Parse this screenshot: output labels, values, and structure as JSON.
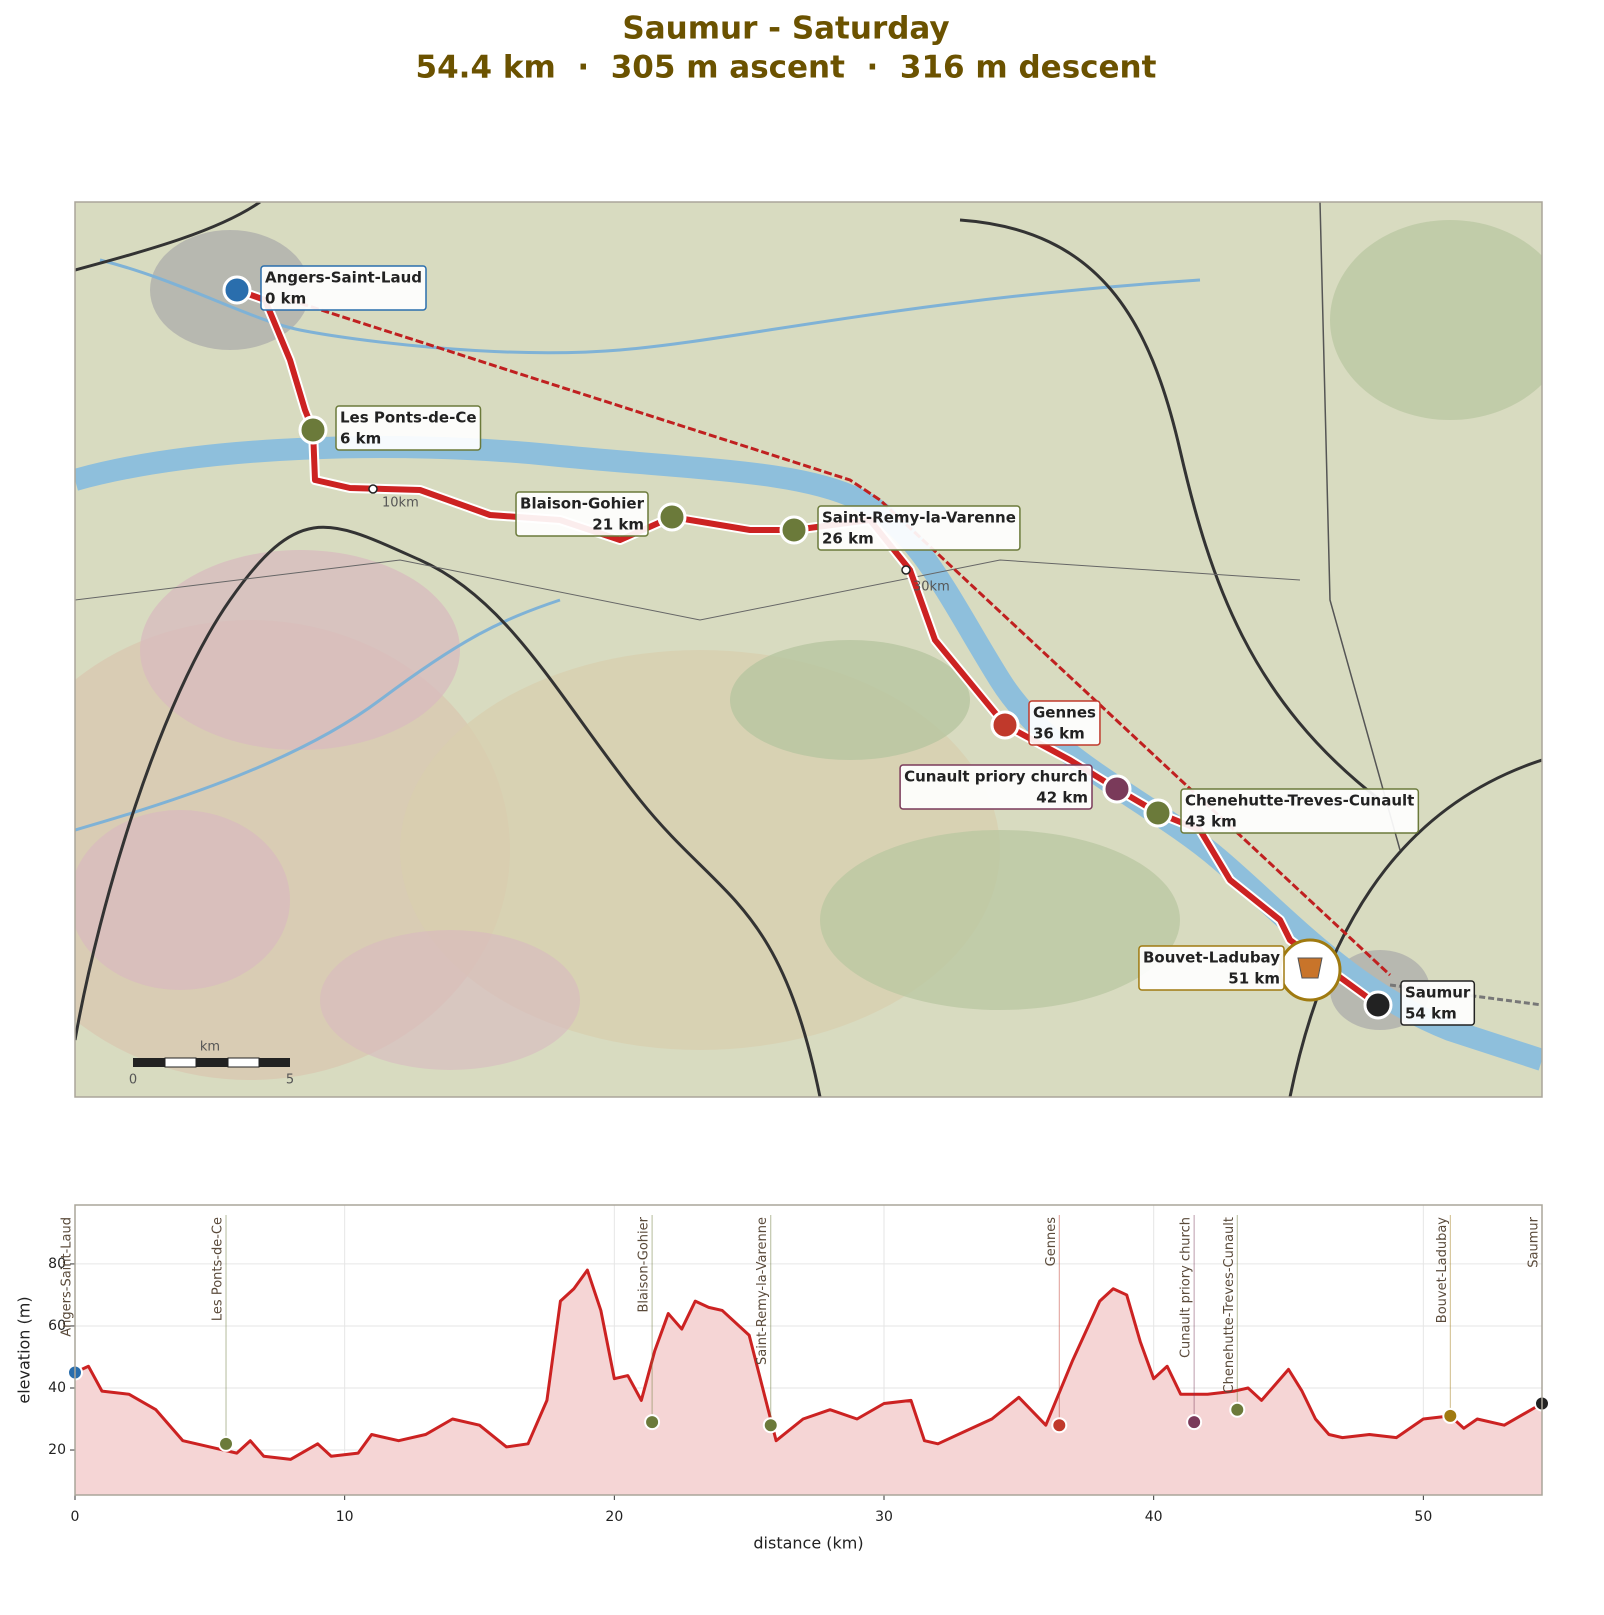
{
  "title": "Saumur - Saturday",
  "subtitle": "54.4 km  ·  305 m ascent  ·  316 m descent",
  "map": {
    "km_labels": [
      "0 km",
      "6 km",
      "21 km",
      "26 km",
      "36 km",
      "42 km",
      "43 km",
      "51 km",
      "54 km"
    ],
    "distance_markers": [
      "10km",
      "30km"
    ],
    "scale_unit": "km",
    "scale_ticks": [
      0,
      5
    ]
  },
  "chart_data": {
    "type": "area",
    "xlabel": "distance (km)",
    "ylabel": "elevation (m)",
    "x": [
      0,
      0.5,
      1,
      2,
      3,
      4,
      5,
      6,
      6.5,
      7,
      8,
      9,
      9.5,
      10.5,
      11,
      12,
      13,
      14,
      15,
      16,
      16.8,
      17.5,
      18,
      18.5,
      19,
      19.5,
      20,
      20.5,
      21,
      21.5,
      22,
      22.5,
      23,
      23.5,
      24,
      25,
      26,
      27,
      28,
      29,
      30,
      31,
      31.5,
      32,
      33,
      34,
      35,
      36,
      37,
      38,
      38.5,
      39,
      39.5,
      40,
      40.5,
      41,
      42,
      43,
      43.5,
      44,
      45,
      45.5,
      46,
      46.5,
      47,
      48,
      49,
      50,
      51,
      51.5,
      52,
      53,
      54.4
    ],
    "series": [
      {
        "name": "elevation",
        "color": "#cc2222",
        "fill": "#f5d5d5",
        "values": [
          45,
          47,
          39,
          38,
          33,
          23,
          21,
          19,
          23,
          18,
          17,
          22,
          18,
          19,
          25,
          23,
          25,
          30,
          28,
          21,
          22,
          36,
          68,
          72,
          78,
          65,
          43,
          44,
          36,
          52,
          64,
          59,
          68,
          66,
          65,
          57,
          23,
          30,
          33,
          30,
          35,
          36,
          23,
          22,
          26,
          30,
          37,
          28,
          49,
          68,
          72,
          70,
          55,
          43,
          47,
          38,
          38,
          39,
          40,
          36,
          46,
          39,
          30,
          25,
          24,
          25,
          24,
          30,
          31,
          27,
          30,
          28,
          35
        ]
      }
    ],
    "waypoints": {
      "names": [
        "Angers-Saint-Laud",
        "Les Ponts-de-Ce",
        "Blaison-Gohier",
        "Saint-Remy-la-Varenne",
        "Gennes",
        "Cunault priory church",
        "Chenehutte-Treves-Cunault",
        "Bouvet-Ladubay",
        "Saumur"
      ],
      "x": [
        0,
        5.6,
        21.4,
        25.8,
        36.5,
        41.5,
        43.1,
        51,
        54.4
      ],
      "y": [
        45,
        22,
        29,
        28,
        28,
        29,
        33,
        31,
        35
      ],
      "colors": [
        "#2a6ead",
        "#6b7a3a",
        "#6b7a3a",
        "#6b7a3a",
        "#c0392b",
        "#7a3a5a",
        "#6b7a3a",
        "#a07a10",
        "#222222"
      ]
    },
    "xlim": [
      0,
      54.4
    ],
    "ylim": [
      5.5,
      99
    ],
    "xticks": [
      0,
      10,
      20,
      30,
      40,
      50
    ],
    "yticks": [
      20,
      40,
      60,
      80
    ],
    "grid": true
  }
}
